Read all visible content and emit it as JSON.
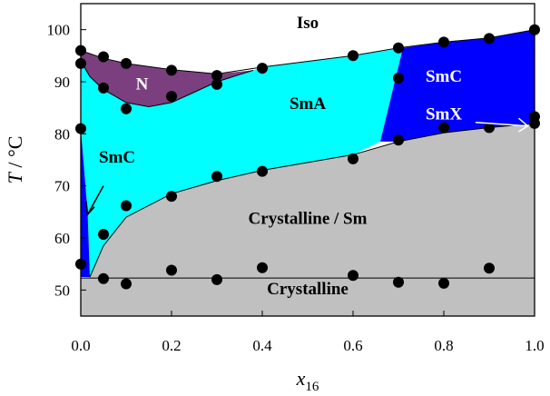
{
  "chart_data": {
    "type": "scatter",
    "title": "",
    "xlabel": {
      "var": "x",
      "sub": "16"
    },
    "ylabel": {
      "var": "T",
      "unit": " / °C"
    },
    "xlim": [
      0.0,
      1.0
    ],
    "ylim": [
      45,
      105
    ],
    "xticks": [
      "0.0",
      "0.2",
      "0.4",
      "0.6",
      "0.8",
      "1.0"
    ],
    "yticks": [
      "50",
      "60",
      "70",
      "80",
      "90",
      "100"
    ],
    "grid": false,
    "colors": {
      "N": "#7b3f7f",
      "SmA": "#00ffff",
      "SmC": "#0000ff",
      "Crystalline_Sm": "#c0c0c0",
      "Crystalline": "#c0c0c0",
      "Iso": "#ffffff",
      "points": "#000000"
    },
    "regions": [
      {
        "label": "Iso",
        "color": "#000000"
      },
      {
        "label": "N",
        "color": "#ffffff"
      },
      {
        "label": "SmA",
        "color": "#000000"
      },
      {
        "label": "SmC",
        "color": "#ffffff"
      },
      {
        "label": "SmX",
        "color": "#ffffff"
      },
      {
        "label": "SmC",
        "color": "#000000"
      },
      {
        "label": "Crystalline / Sm",
        "color": "#000000"
      },
      {
        "label": "Crystalline",
        "color": "#000000"
      }
    ],
    "boundaries": {
      "iso_clearing": [
        [
          0.0,
          96.0
        ],
        [
          0.05,
          94.5
        ],
        [
          0.1,
          93.5
        ],
        [
          0.2,
          92.3
        ],
        [
          0.3,
          91.5
        ],
        [
          0.4,
          92.8
        ],
        [
          0.6,
          95.0
        ],
        [
          0.7,
          96.5
        ],
        [
          0.8,
          97.6
        ],
        [
          0.9,
          98.4
        ],
        [
          1.0,
          100.0
        ]
      ],
      "n_sma": [
        [
          0.0,
          94.0
        ],
        [
          0.02,
          91.0
        ],
        [
          0.05,
          88.5
        ],
        [
          0.1,
          86.0
        ],
        [
          0.15,
          85.2
        ],
        [
          0.2,
          86.0
        ],
        [
          0.25,
          88.0
        ],
        [
          0.3,
          90.0
        ],
        [
          0.38,
          92.2
        ]
      ],
      "sma_smc_right": [
        [
          0.71,
          96.5
        ],
        [
          0.66,
          78.5
        ]
      ],
      "crystal_sm": [
        [
          0.02,
          52.5
        ],
        [
          0.05,
          58.5
        ],
        [
          0.1,
          64.0
        ],
        [
          0.2,
          68.5
        ],
        [
          0.3,
          71.0
        ],
        [
          0.4,
          73.0
        ],
        [
          0.6,
          76.0
        ],
        [
          0.7,
          78.5
        ],
        [
          0.8,
          80.2
        ],
        [
          0.9,
          81.2
        ],
        [
          1.0,
          82.0
        ]
      ],
      "smc_left_top": [
        [
          0.0,
          81.0
        ],
        [
          0.015,
          65.0
        ],
        [
          0.02,
          52.5
        ]
      ],
      "crystalline": [
        [
          0.0,
          52.3
        ],
        [
          1.0,
          52.3
        ]
      ]
    },
    "points": [
      [
        0.0,
        96.0
      ],
      [
        0.0,
        93.5
      ],
      [
        0.0,
        81.0
      ],
      [
        0.0,
        55.0
      ],
      [
        0.05,
        94.8
      ],
      [
        0.05,
        88.8
      ],
      [
        0.05,
        60.7
      ],
      [
        0.05,
        52.2
      ],
      [
        0.1,
        93.5
      ],
      [
        0.1,
        84.8
      ],
      [
        0.1,
        66.2
      ],
      [
        0.1,
        51.2
      ],
      [
        0.2,
        92.2
      ],
      [
        0.2,
        87.2
      ],
      [
        0.2,
        68.0
      ],
      [
        0.2,
        53.8
      ],
      [
        0.3,
        91.2
      ],
      [
        0.3,
        89.5
      ],
      [
        0.3,
        71.8
      ],
      [
        0.3,
        52.0
      ],
      [
        0.4,
        92.6
      ],
      [
        0.4,
        72.8
      ],
      [
        0.4,
        54.3
      ],
      [
        0.6,
        95.0
      ],
      [
        0.6,
        75.2
      ],
      [
        0.6,
        52.8
      ],
      [
        0.7,
        96.5
      ],
      [
        0.7,
        90.7
      ],
      [
        0.7,
        78.8
      ],
      [
        0.7,
        51.5
      ],
      [
        0.8,
        97.6
      ],
      [
        0.8,
        81.2
      ],
      [
        0.8,
        51.3
      ],
      [
        0.9,
        98.3
      ],
      [
        0.9,
        81.2
      ],
      [
        0.9,
        54.2
      ],
      [
        1.0,
        100.0
      ],
      [
        1.0,
        83.3
      ],
      [
        1.0,
        82.0
      ]
    ]
  }
}
